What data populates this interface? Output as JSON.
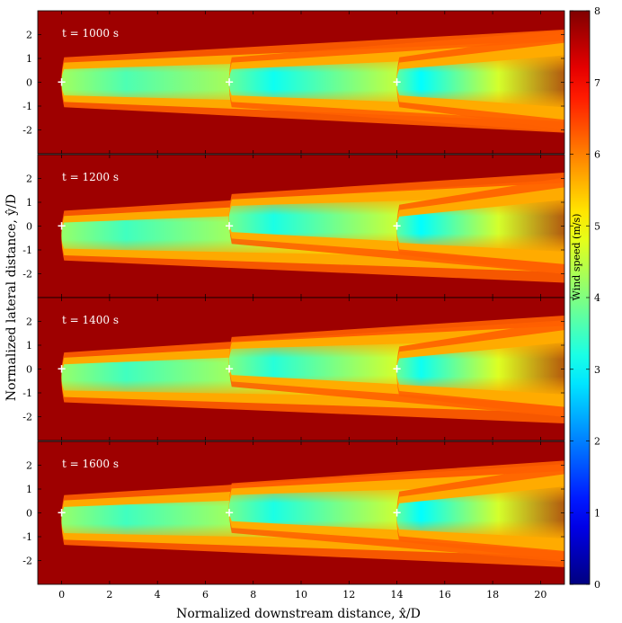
{
  "chart_data": {
    "type": "heatmap",
    "xlabel": "Normalized downstream distance, x̂/D",
    "ylabel": "Normalized lateral distance, ŷ/D",
    "xlim": [
      -1,
      21
    ],
    "ylim": [
      -3,
      3
    ],
    "xticks": [
      0,
      2,
      4,
      6,
      8,
      10,
      12,
      14,
      16,
      18,
      20
    ],
    "yticks": [
      2,
      1,
      0,
      -1,
      -2
    ],
    "colorbar": {
      "label": "Wind speed (m/s)",
      "range": [
        0,
        8
      ],
      "ticks": [
        0,
        1,
        2,
        3,
        4,
        5,
        6,
        7,
        8
      ],
      "colormap": "jet"
    },
    "free_stream_speed": 8,
    "turbines_x": [
      0,
      7,
      14
    ],
    "turbine_marker": "+",
    "panels": [
      {
        "label": "t = 1000 s",
        "wakes": [
          {
            "x0": 0,
            "y_start": 0.0,
            "y_end": 0.05,
            "min_speed": 3.6
          },
          {
            "x0": 7,
            "y_start": 0.0,
            "y_end": 0.05,
            "min_speed": 3.1
          },
          {
            "x0": 14,
            "y_start": 0.0,
            "y_end": 0.05,
            "min_speed": 3.0
          }
        ]
      },
      {
        "label": "t = 1200 s",
        "wakes": [
          {
            "x0": 0,
            "y_start": -0.4,
            "y_end": -0.2,
            "min_speed": 3.5
          },
          {
            "x0": 7,
            "y_start": 0.3,
            "y_end": 0.1,
            "min_speed": 3.2
          },
          {
            "x0": 14,
            "y_start": -0.15,
            "y_end": 0.05,
            "min_speed": 3.0
          }
        ]
      },
      {
        "label": "t = 1400 s",
        "wakes": [
          {
            "x0": 0,
            "y_start": -0.35,
            "y_end": -0.1,
            "min_speed": 3.5
          },
          {
            "x0": 7,
            "y_start": 0.3,
            "y_end": 0.1,
            "min_speed": 3.3
          },
          {
            "x0": 14,
            "y_start": -0.1,
            "y_end": 0.05,
            "min_speed": 3.1
          }
        ]
      },
      {
        "label": "t = 1600 s",
        "wakes": [
          {
            "x0": 0,
            "y_start": -0.3,
            "y_end": -0.1,
            "min_speed": 3.5
          },
          {
            "x0": 7,
            "y_start": 0.2,
            "y_end": 0.05,
            "min_speed": 3.2
          },
          {
            "x0": 14,
            "y_start": -0.15,
            "y_end": 0.05,
            "min_speed": 3.0
          }
        ]
      }
    ]
  }
}
